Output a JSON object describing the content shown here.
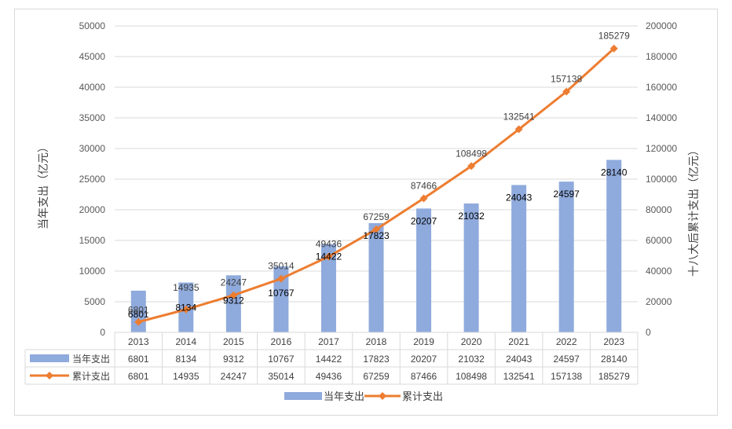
{
  "colors": {
    "bar": "#8FAADC",
    "line": "#ED7D31",
    "grid": "#d9d9d9",
    "text": "#595959"
  },
  "chart_data": {
    "type": "bar",
    "categories": [
      "2013",
      "2014",
      "2015",
      "2016",
      "2017",
      "2018",
      "2019",
      "2020",
      "2021",
      "2022",
      "2023"
    ],
    "series": [
      {
        "name": "当年支出",
        "type": "bar",
        "axis": "left",
        "values": [
          6801,
          8134,
          9312,
          10767,
          14422,
          17823,
          20207,
          21032,
          24043,
          24597,
          28140
        ]
      },
      {
        "name": "累计支出",
        "type": "line",
        "axis": "right",
        "values": [
          6801,
          14935,
          24247,
          35014,
          49436,
          67259,
          87466,
          108498,
          132541,
          157138,
          185279
        ]
      }
    ],
    "ylabel": "当年支出（亿元）",
    "ylabel_right": "十八大后累计支出（亿元）",
    "ylim": [
      0,
      50000
    ],
    "ylim_right": [
      0,
      200000
    ],
    "yticks": [
      "0",
      "5000",
      "10000",
      "15000",
      "20000",
      "25000",
      "30000",
      "35000",
      "40000",
      "45000",
      "50000"
    ],
    "yticks_right": [
      "0",
      "20000",
      "40000",
      "60000",
      "80000",
      "100000",
      "120000",
      "140000",
      "160000",
      "180000",
      "200000"
    ],
    "grid": true,
    "data_table": true,
    "legend": "bottom"
  }
}
